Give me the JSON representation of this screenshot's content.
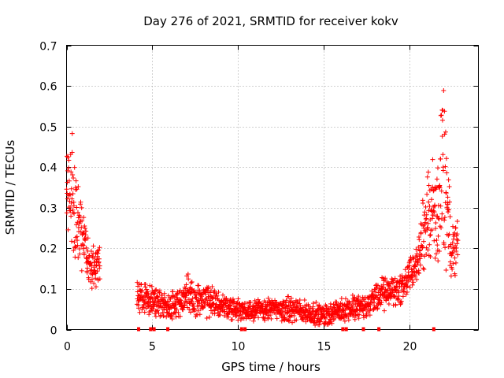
{
  "chart_data": {
    "type": "scatter",
    "title": "Day 276 of 2021, SRMTID for receiver kokv",
    "xlabel": "GPS time / hours",
    "ylabel": "SRMTID / TECUs",
    "xlim": [
      0,
      24
    ],
    "ylim": [
      0,
      0.7
    ],
    "xticks": [
      "0",
      "5",
      "10",
      "15",
      "20"
    ],
    "yticks": [
      "0",
      "0.1",
      "0.2",
      "0.3",
      "0.4",
      "0.5",
      "0.6",
      "0.7"
    ],
    "grid": true,
    "marker": "+",
    "color": "#ff0000",
    "series": [
      {
        "name": "SRMTID",
        "envelope": [
          {
            "x": 0.0,
            "base": 0.32,
            "spread": 0.09
          },
          {
            "x": 0.3,
            "base": 0.35,
            "spread": 0.13
          },
          {
            "x": 0.6,
            "base": 0.28,
            "spread": 0.11
          },
          {
            "x": 1.0,
            "base": 0.2,
            "spread": 0.07
          },
          {
            "x": 1.4,
            "base": 0.15,
            "spread": 0.06
          },
          {
            "x": 1.9,
            "base": 0.16,
            "spread": 0.05
          },
          {
            "x": 4.2,
            "base": 0.08,
            "spread": 0.04
          },
          {
            "x": 6.0,
            "base": 0.06,
            "spread": 0.03
          },
          {
            "x": 7.0,
            "base": 0.08,
            "spread": 0.05
          },
          {
            "x": 10.0,
            "base": 0.05,
            "spread": 0.025
          },
          {
            "x": 13.0,
            "base": 0.05,
            "spread": 0.03
          },
          {
            "x": 15.0,
            "base": 0.035,
            "spread": 0.025
          },
          {
            "x": 16.2,
            "base": 0.05,
            "spread": 0.03
          },
          {
            "x": 17.5,
            "base": 0.06,
            "spread": 0.03
          },
          {
            "x": 18.5,
            "base": 0.09,
            "spread": 0.04
          },
          {
            "x": 19.5,
            "base": 0.1,
            "spread": 0.04
          },
          {
            "x": 20.5,
            "base": 0.17,
            "spread": 0.05
          },
          {
            "x": 21.0,
            "base": 0.28,
            "spread": 0.12
          },
          {
            "x": 21.6,
            "base": 0.3,
            "spread": 0.14
          },
          {
            "x": 22.0,
            "base": 0.38,
            "spread": 0.2
          },
          {
            "x": 22.4,
            "base": 0.18,
            "spread": 0.08
          },
          {
            "x": 22.8,
            "base": 0.22,
            "spread": 0.08
          }
        ],
        "gaps": [
          [
            1.95,
            4.1
          ]
        ],
        "point_count": 1900
      }
    ],
    "zero_markers_x": [
      4.2,
      4.9,
      5.1,
      5.9,
      10.2,
      10.4,
      16.1,
      16.3,
      17.3,
      18.2,
      21.4
    ]
  }
}
